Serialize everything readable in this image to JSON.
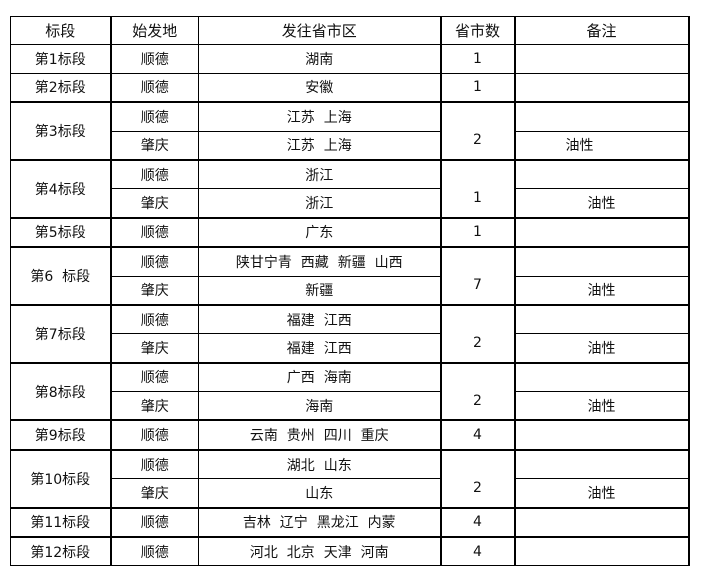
{
  "header": [
    "标段",
    "始发地",
    "发往省市区",
    "省市数",
    "备注"
  ],
  "sections": [
    {
      "label": "第1标段",
      "count": "1",
      "rows": [
        {
          "origin": "顺德",
          "dest": "湖南",
          "note": ""
        }
      ]
    },
    {
      "label": "第2标段",
      "count": "1",
      "rows": [
        {
          "origin": "顺德",
          "dest": "安徽",
          "note": ""
        }
      ]
    },
    {
      "label": "第3标段",
      "count": "2",
      "rows": [
        {
          "origin": "顺德",
          "dest": "江苏  上海",
          "note": ""
        },
        {
          "origin": "肇庆",
          "dest": "江苏  上海",
          "note": "油性"
        }
      ]
    },
    {
      "label": "第4标段",
      "count": "1",
      "rows": [
        {
          "origin": "顺德",
          "dest": "浙江",
          "note": ""
        },
        {
          "origin": "肇庆",
          "dest": "浙江",
          "note": "油性"
        }
      ]
    },
    {
      "label": "第5标段",
      "count": "1",
      "rows": [
        {
          "origin": "顺德",
          "dest": "广东",
          "note": ""
        }
      ]
    },
    {
      "label": "第6  标段",
      "count": "7",
      "rows": [
        {
          "origin": "顺德",
          "dest": "陕甘宁青  西藏  新疆  山西",
          "note": ""
        },
        {
          "origin": "肇庆",
          "dest": "新疆",
          "note": "油性"
        }
      ]
    },
    {
      "label": "第7标段",
      "count": "2",
      "rows": [
        {
          "origin": "顺德",
          "dest": "福建  江西",
          "note": ""
        },
        {
          "origin": "肇庆",
          "dest": "福建  江西",
          "note": "油性"
        }
      ]
    },
    {
      "label": "第8标段",
      "count": "2",
      "rows": [
        {
          "origin": "顺德",
          "dest": "广西  海南",
          "note": ""
        },
        {
          "origin": "肇庆",
          "dest": "海南",
          "note": "油性"
        }
      ]
    },
    {
      "label": "第9标段",
      "count": "4",
      "rows": [
        {
          "origin": "顺德",
          "dest": "云南  贵州  四川  重庆",
          "note": ""
        }
      ]
    },
    {
      "label": "第10标段",
      "count": "2",
      "rows": [
        {
          "origin": "顺德",
          "dest": "湖北  山东",
          "note": ""
        },
        {
          "origin": "肇庆",
          "dest": "山东",
          "note": "油性"
        }
      ]
    },
    {
      "label": "第11标段",
      "count": "4",
      "rows": [
        {
          "origin": "顺德",
          "dest": "吉林  辽宁  黑龙江  内蒙",
          "note": ""
        }
      ]
    },
    {
      "label": "第12标段",
      "count": "4",
      "rows": [
        {
          "origin": "顺德",
          "dest": "河北  北京  天津  河南",
          "note": ""
        }
      ]
    }
  ]
}
